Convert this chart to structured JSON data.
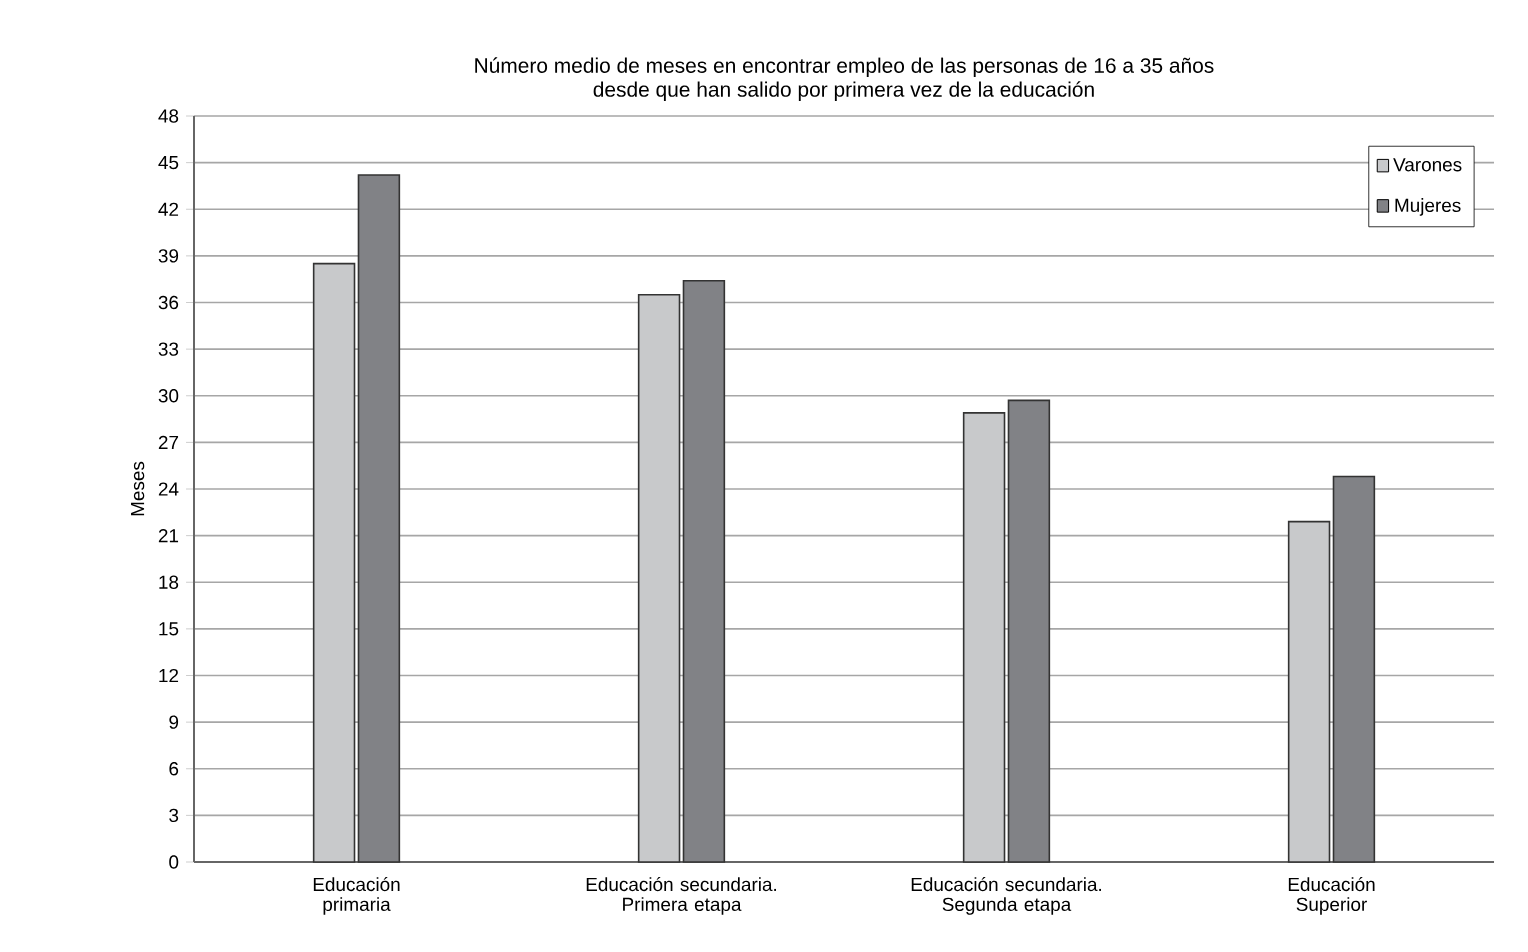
{
  "chart_data": {
    "type": "bar",
    "title": "Número medio de meses en encontrar empleo de las personas de 16 a 35 años\ndesde que han salido por primera vez de la educación",
    "ylabel": "Meses",
    "categories": [
      "Educación\nprimaria",
      "Educación secundaria.\nPrimera etapa",
      "Educación secundaria.\nSegunda etapa",
      "Educación\nSuperior"
    ],
    "series": [
      {
        "name": "Varones",
        "color": "#c8c9cb",
        "values": [
          38.5,
          36.5,
          28.9,
          21.9
        ]
      },
      {
        "name": "Mujeres",
        "color": "#818286",
        "values": [
          44.2,
          37.4,
          29.7,
          24.8
        ]
      }
    ],
    "ylim": [
      0,
      48
    ],
    "yticks": [
      0,
      3,
      6,
      9,
      12,
      15,
      18,
      21,
      24,
      27,
      30,
      33,
      36,
      39,
      42,
      45,
      48
    ],
    "grid": "y",
    "legend": "top right"
  }
}
